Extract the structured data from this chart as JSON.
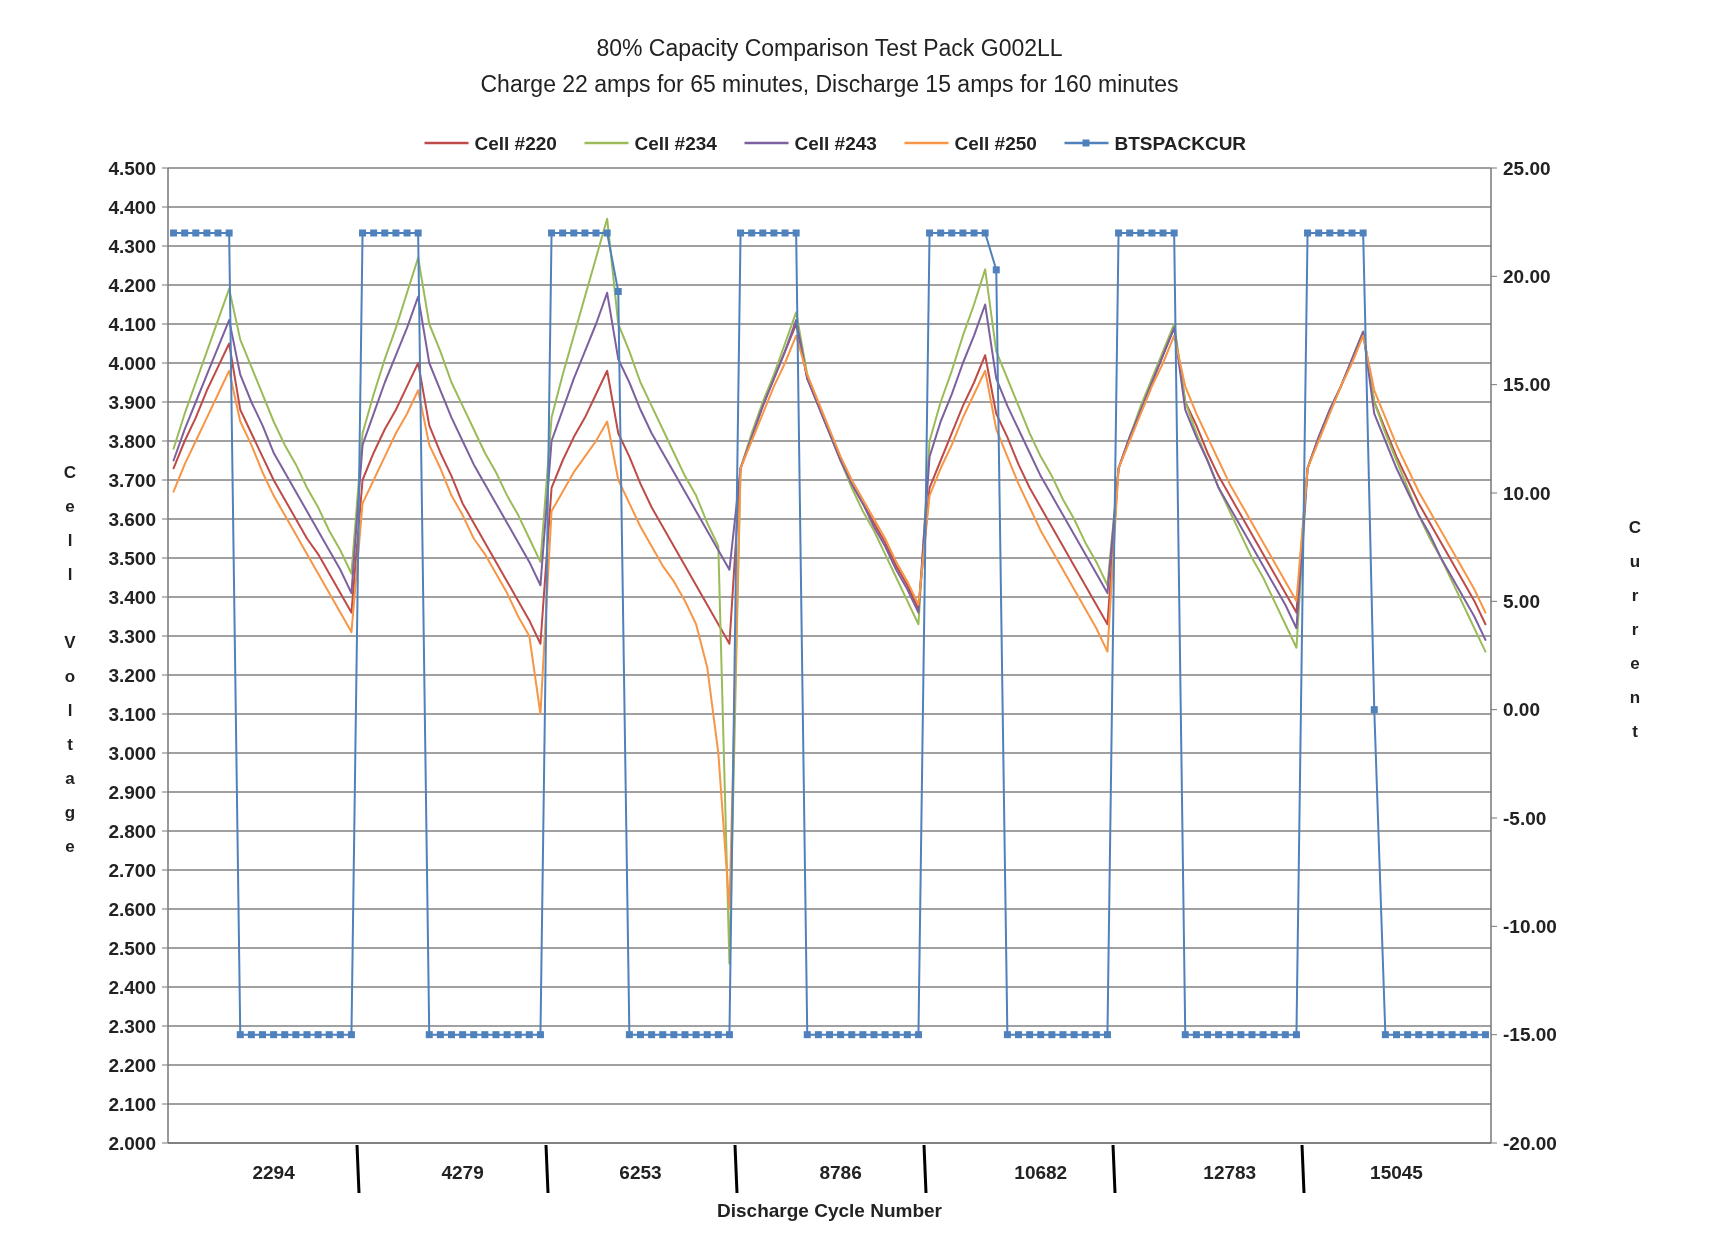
{
  "chart_data": {
    "type": "line",
    "title": "80% Capacity Comparison Test Pack G002LL",
    "subtitle": "Charge 22 amps for 65 minutes, Discharge 15 amps for 160 minutes",
    "xlabel": "Discharge Cycle Number",
    "ylabel": "Cell Voltage",
    "y2label": "Current",
    "categories": [
      null,
      null,
      null,
      null,
      null,
      null,
      null,
      null,
      null,
      "2294",
      null,
      null,
      null,
      null,
      null,
      null,
      null,
      null,
      null,
      null,
      null,
      null,
      null,
      null,
      null,
      null,
      "4279",
      null,
      null,
      null,
      null,
      null,
      null,
      null,
      null,
      null,
      null,
      null,
      null,
      null,
      null,
      null,
      "6253",
      null,
      null,
      null,
      null,
      null,
      null,
      null,
      null,
      null,
      null,
      null,
      null,
      null,
      null,
      null,
      null,
      null,
      "8786",
      null,
      null,
      null,
      null,
      null,
      null,
      null,
      null,
      null,
      null,
      null,
      null,
      null,
      null,
      null,
      null,
      null,
      "10682",
      null,
      null,
      null,
      null,
      null,
      null,
      null,
      null,
      null,
      null,
      null,
      null,
      null,
      null,
      null,
      null,
      "12783",
      null,
      null,
      null,
      null,
      null,
      null,
      null,
      null,
      null,
      null,
      null,
      null,
      null,
      null,
      "15045",
      null,
      null,
      null,
      null,
      null,
      null,
      null,
      null
    ],
    "ylim": [
      2.0,
      4.5
    ],
    "yticks": [
      {
        "value": 2.0,
        "label": "2.000"
      },
      {
        "value": 2.1,
        "label": "2.100"
      },
      {
        "value": 2.2,
        "label": "2.200"
      },
      {
        "value": 2.3,
        "label": "2.300"
      },
      {
        "value": 2.4,
        "label": "2.400"
      },
      {
        "value": 2.5,
        "label": "2.500"
      },
      {
        "value": 2.6,
        "label": "2.600"
      },
      {
        "value": 2.7,
        "label": "2.700"
      },
      {
        "value": 2.8,
        "label": "2.800"
      },
      {
        "value": 2.9,
        "label": "2.900"
      },
      {
        "value": 3.0,
        "label": "3.000"
      },
      {
        "value": 3.1,
        "label": "3.100"
      },
      {
        "value": 3.2,
        "label": "3.200"
      },
      {
        "value": 3.3,
        "label": "3.300"
      },
      {
        "value": 3.4,
        "label": "3.400"
      },
      {
        "value": 3.5,
        "label": "3.500"
      },
      {
        "value": 3.6,
        "label": "3.600"
      },
      {
        "value": 3.7,
        "label": "3.700"
      },
      {
        "value": 3.8,
        "label": "3.800"
      },
      {
        "value": 3.9,
        "label": "3.900"
      },
      {
        "value": 4.0,
        "label": "4.000"
      },
      {
        "value": 4.1,
        "label": "4.100"
      },
      {
        "value": 4.2,
        "label": "4.200"
      },
      {
        "value": 4.3,
        "label": "4.300"
      },
      {
        "value": 4.4,
        "label": "4.400"
      },
      {
        "value": 4.5,
        "label": "4.500"
      }
    ],
    "y2lim": [
      -20,
      25
    ],
    "y2ticks": [
      {
        "value": -20,
        "label": "-20.00"
      },
      {
        "value": -15,
        "label": "-15.00"
      },
      {
        "value": -10,
        "label": "-10.00"
      },
      {
        "value": -5,
        "label": "-5.00"
      },
      {
        "value": 0,
        "label": "0.00"
      },
      {
        "value": 5,
        "label": "5.00"
      },
      {
        "value": 10,
        "label": "10.00"
      },
      {
        "value": 15,
        "label": "15.00"
      },
      {
        "value": 20,
        "label": "20.00"
      },
      {
        "value": 25,
        "label": "25.00"
      }
    ],
    "grid": "y",
    "legend": "top",
    "series": [
      {
        "name": "Cell #220",
        "color": "#be4b48",
        "values": [
          3.73,
          3.8,
          3.86,
          3.93,
          3.99,
          4.05,
          3.88,
          3.82,
          3.76,
          3.7,
          3.65,
          3.6,
          3.55,
          3.51,
          3.46,
          3.41,
          3.36,
          3.7,
          3.77,
          3.83,
          3.88,
          3.94,
          4.0,
          3.84,
          3.77,
          3.71,
          3.64,
          3.59,
          3.54,
          3.49,
          3.44,
          3.39,
          3.34,
          3.28,
          3.68,
          3.75,
          3.81,
          3.86,
          3.92,
          3.98,
          3.82,
          3.76,
          3.69,
          3.63,
          3.58,
          3.53,
          3.48,
          3.43,
          3.38,
          3.33,
          3.28,
          3.73,
          3.81,
          3.89,
          3.96,
          4.03,
          4.1,
          3.96,
          3.89,
          3.82,
          3.75,
          3.69,
          3.64,
          3.59,
          3.54,
          3.48,
          3.43,
          3.37,
          3.68,
          3.75,
          3.82,
          3.89,
          3.95,
          4.02,
          3.87,
          3.81,
          3.74,
          3.68,
          3.63,
          3.58,
          3.53,
          3.48,
          3.43,
          3.38,
          3.33,
          3.73,
          3.81,
          3.88,
          3.95,
          4.02,
          4.09,
          3.9,
          3.84,
          3.77,
          3.71,
          3.66,
          3.61,
          3.56,
          3.51,
          3.46,
          3.41,
          3.36,
          3.73,
          3.81,
          3.88,
          3.94,
          4.01,
          4.08,
          3.9,
          3.83,
          3.76,
          3.7,
          3.64,
          3.59,
          3.54,
          3.49,
          3.44,
          3.39,
          3.33
        ]
      },
      {
        "name": "Cell #234",
        "color": "#9bbb59",
        "values": [
          3.78,
          3.87,
          3.95,
          4.03,
          4.11,
          4.19,
          4.06,
          3.99,
          3.92,
          3.85,
          3.79,
          3.74,
          3.68,
          3.63,
          3.57,
          3.52,
          3.46,
          3.82,
          3.92,
          4.01,
          4.09,
          4.18,
          4.27,
          4.1,
          4.03,
          3.95,
          3.89,
          3.83,
          3.77,
          3.72,
          3.66,
          3.61,
          3.55,
          3.49,
          3.86,
          3.97,
          4.07,
          4.17,
          4.27,
          4.37,
          4.1,
          4.03,
          3.95,
          3.89,
          3.83,
          3.77,
          3.71,
          3.66,
          3.59,
          3.53,
          2.46,
          3.73,
          3.82,
          3.9,
          3.97,
          4.05,
          4.13,
          3.97,
          3.89,
          3.82,
          3.75,
          3.68,
          3.62,
          3.57,
          3.51,
          3.45,
          3.39,
          3.33,
          3.8,
          3.9,
          3.98,
          4.07,
          4.15,
          4.24,
          4.03,
          3.96,
          3.89,
          3.82,
          3.76,
          3.71,
          3.65,
          3.6,
          3.54,
          3.49,
          3.43,
          3.73,
          3.81,
          3.89,
          3.96,
          4.03,
          4.1,
          3.9,
          3.82,
          3.75,
          3.68,
          3.62,
          3.56,
          3.5,
          3.45,
          3.39,
          3.33,
          3.27,
          3.73,
          3.81,
          3.88,
          3.94,
          4.01,
          4.08,
          3.9,
          3.82,
          3.75,
          3.68,
          3.61,
          3.55,
          3.5,
          3.44,
          3.38,
          3.32,
          3.26
        ]
      },
      {
        "name": "Cell #243",
        "color": "#7d60a0",
        "values": [
          3.75,
          3.83,
          3.9,
          3.97,
          4.04,
          4.11,
          3.97,
          3.9,
          3.84,
          3.77,
          3.72,
          3.67,
          3.62,
          3.57,
          3.52,
          3.47,
          3.41,
          3.79,
          3.87,
          3.95,
          4.02,
          4.09,
          4.17,
          4.0,
          3.93,
          3.86,
          3.8,
          3.74,
          3.69,
          3.64,
          3.59,
          3.54,
          3.49,
          3.43,
          3.8,
          3.88,
          3.96,
          4.03,
          4.1,
          4.18,
          4.01,
          3.95,
          3.88,
          3.82,
          3.77,
          3.72,
          3.67,
          3.62,
          3.57,
          3.52,
          3.47,
          3.73,
          3.81,
          3.89,
          3.96,
          4.03,
          4.11,
          3.96,
          3.89,
          3.82,
          3.75,
          3.69,
          3.64,
          3.58,
          3.53,
          3.47,
          3.42,
          3.36,
          3.76,
          3.85,
          3.92,
          4.0,
          4.07,
          4.15,
          3.96,
          3.89,
          3.83,
          3.77,
          3.71,
          3.66,
          3.61,
          3.56,
          3.51,
          3.46,
          3.41,
          3.73,
          3.81,
          3.88,
          3.95,
          4.02,
          4.09,
          3.88,
          3.81,
          3.75,
          3.68,
          3.63,
          3.58,
          3.53,
          3.48,
          3.43,
          3.38,
          3.32,
          3.73,
          3.81,
          3.88,
          3.94,
          4.01,
          4.08,
          3.87,
          3.8,
          3.73,
          3.67,
          3.61,
          3.56,
          3.5,
          3.45,
          3.4,
          3.35,
          3.29
        ]
      },
      {
        "name": "Cell #250",
        "color": "#f79646",
        "values": [
          3.67,
          3.74,
          3.8,
          3.86,
          3.92,
          3.98,
          3.85,
          3.79,
          3.72,
          3.66,
          3.61,
          3.56,
          3.51,
          3.46,
          3.41,
          3.36,
          3.31,
          3.64,
          3.7,
          3.76,
          3.82,
          3.87,
          3.93,
          3.79,
          3.73,
          3.66,
          3.61,
          3.55,
          3.51,
          3.46,
          3.41,
          3.35,
          3.3,
          3.1,
          3.62,
          3.67,
          3.72,
          3.76,
          3.8,
          3.85,
          3.7,
          3.64,
          3.58,
          3.53,
          3.48,
          3.44,
          3.39,
          3.33,
          3.22,
          3.0,
          2.6,
          3.73,
          3.8,
          3.87,
          3.94,
          4.0,
          4.07,
          3.97,
          3.9,
          3.83,
          3.76,
          3.7,
          3.65,
          3.6,
          3.55,
          3.49,
          3.44,
          3.38,
          3.66,
          3.73,
          3.79,
          3.86,
          3.92,
          3.98,
          3.83,
          3.76,
          3.69,
          3.63,
          3.57,
          3.52,
          3.47,
          3.42,
          3.37,
          3.32,
          3.26,
          3.73,
          3.8,
          3.87,
          3.94,
          4.0,
          4.07,
          3.94,
          3.87,
          3.81,
          3.75,
          3.69,
          3.64,
          3.59,
          3.54,
          3.49,
          3.44,
          3.39,
          3.73,
          3.8,
          3.87,
          3.94,
          4.0,
          4.07,
          3.93,
          3.86,
          3.79,
          3.73,
          3.67,
          3.62,
          3.57,
          3.52,
          3.47,
          3.42,
          3.36
        ]
      },
      {
        "name": "BTSPACKCUR",
        "color": "#4f81bd",
        "axis": "y2",
        "marker": "square",
        "values": [
          22,
          22,
          22,
          22,
          22,
          22,
          -15,
          -15,
          -15,
          -15,
          -15,
          -15,
          -15,
          -15,
          -15,
          -15,
          -15,
          22,
          22,
          22,
          22,
          22,
          22,
          -15,
          -15,
          -15,
          -15,
          -15,
          -15,
          -15,
          -15,
          -15,
          -15,
          -15,
          22,
          22,
          22,
          22,
          22,
          22,
          19.3,
          -15,
          -15,
          -15,
          -15,
          -15,
          -15,
          -15,
          -15,
          -15,
          -15,
          22,
          22,
          22,
          22,
          22,
          22,
          -15,
          -15,
          -15,
          -15,
          -15,
          -15,
          -15,
          -15,
          -15,
          -15,
          -15,
          22,
          22,
          22,
          22,
          22,
          22,
          20.3,
          -15,
          -15,
          -15,
          -15,
          -15,
          -15,
          -15,
          -15,
          -15,
          -15,
          22,
          22,
          22,
          22,
          22,
          22,
          -15,
          -15,
          -15,
          -15,
          -15,
          -15,
          -15,
          -15,
          -15,
          -15,
          -15,
          22,
          22,
          22,
          22,
          22,
          22,
          0,
          -15,
          -15,
          -15,
          -15,
          -15,
          -15,
          -15,
          -15,
          -15,
          -15
        ]
      }
    ]
  }
}
